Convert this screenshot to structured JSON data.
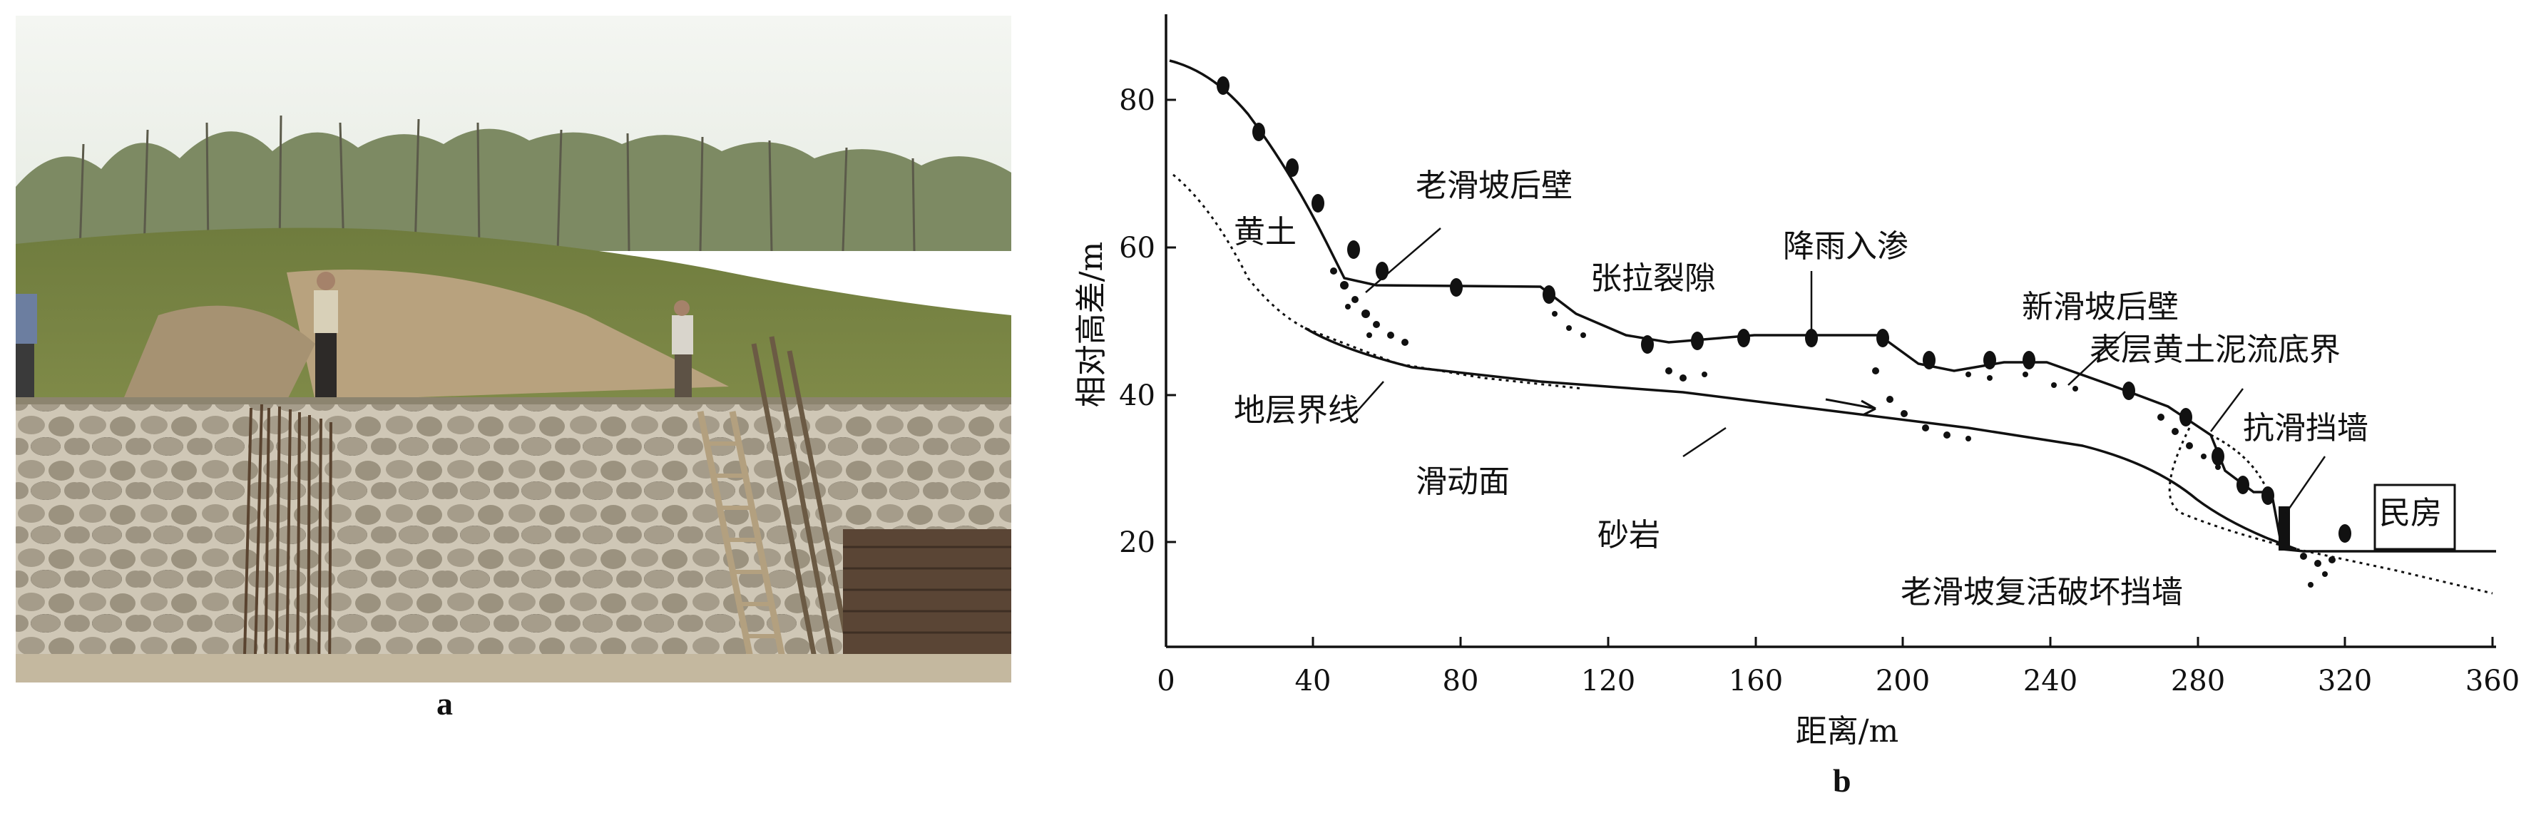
{
  "panels": {
    "a": {
      "label": "a"
    },
    "b": {
      "label": "b"
    }
  },
  "diagram": {
    "y_axis_label": "相对高差/m",
    "x_axis_label": "距离/m",
    "x_ticks": [
      "0",
      "40",
      "80",
      "120",
      "160",
      "200",
      "240",
      "280",
      "320",
      "360"
    ],
    "y_ticks": [
      "20",
      "40",
      "60",
      "80"
    ],
    "annotations": {
      "loess": "黄土",
      "old_landslide_back_wall": "老滑坡后壁",
      "tension_cracks": "张拉裂隙",
      "rainfall_infiltration": "降雨入渗",
      "new_landslide_back_wall": "新滑坡后壁",
      "surface_loess_mudflow_base": "表层黄土泥流底界",
      "anti_slide_wall": "抗滑挡墙",
      "stratum_boundary": "地层界线",
      "sliding_surface": "滑动面",
      "sandstone": "砂岩",
      "dwelling": "民房",
      "revived_landslide_damaged_wall": "老滑坡复活破坏挡墙"
    }
  }
}
